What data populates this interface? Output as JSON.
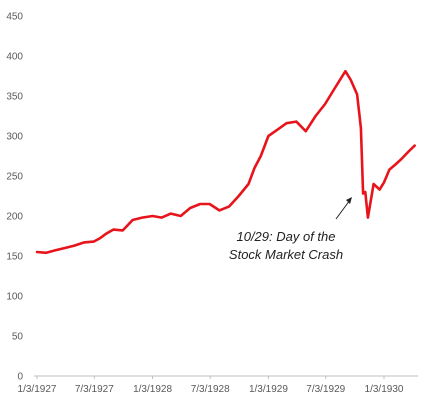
{
  "chart_data": {
    "type": "line",
    "title": "",
    "xlabel": "",
    "ylabel": "",
    "ylim": [
      0,
      450
    ],
    "yticks": [
      0,
      50,
      100,
      150,
      200,
      250,
      300,
      350,
      400,
      450
    ],
    "xticks": [
      "1/3/1927",
      "7/3/1927",
      "1/3/1928",
      "7/3/1928",
      "1/3/1929",
      "7/3/1929",
      "1/3/1930"
    ],
    "grid": false,
    "legend": "none",
    "line_color": "#e8141c",
    "series": [
      {
        "x": [
          "1/3/1927",
          "2/1/1927",
          "3/1/1927",
          "4/1/1927",
          "5/1/1927",
          "6/1/1927",
          "7/1/1927",
          "7/20/1927",
          "8/10/1927",
          "9/1/1927",
          "10/1/1927",
          "11/1/1927",
          "12/1/1927",
          "1/3/1928",
          "2/1/1928",
          "3/1/1928",
          "4/1/1928",
          "5/1/1928",
          "6/1/1928",
          "7/1/1928",
          "8/1/1928",
          "9/1/1928",
          "10/1/1928",
          "11/1/1928",
          "11/20/1928",
          "12/10/1928",
          "1/3/1929",
          "2/1/1929",
          "3/1/1929",
          "4/1/1929",
          "5/1/1929",
          "6/1/1929",
          "7/1/1929",
          "8/1/1929",
          "9/3/1929",
          "9/20/1929",
          "10/10/1929",
          "10/22/1929",
          "10/29/1929",
          "11/5/1929",
          "11/13/1929",
          "12/1/1929",
          "12/20/1929",
          "1/3/1930",
          "1/20/1930",
          "2/10/1930",
          "3/1/1930",
          "3/20/1930",
          "4/10/1930"
        ],
        "values": [
          155,
          154,
          157,
          160,
          163,
          167,
          168,
          172,
          178,
          183,
          182,
          195,
          198,
          200,
          198,
          203,
          200,
          210,
          215,
          215,
          207,
          212,
          225,
          240,
          260,
          275,
          300,
          308,
          316,
          318,
          306,
          325,
          340,
          360,
          381,
          370,
          352,
          310,
          228,
          230,
          198,
          240,
          233,
          242,
          258,
          265,
          272,
          280,
          288
        ]
      }
    ],
    "annotation": {
      "line1": "10/29: Day of the",
      "line2": "Stock Market Crash"
    }
  }
}
